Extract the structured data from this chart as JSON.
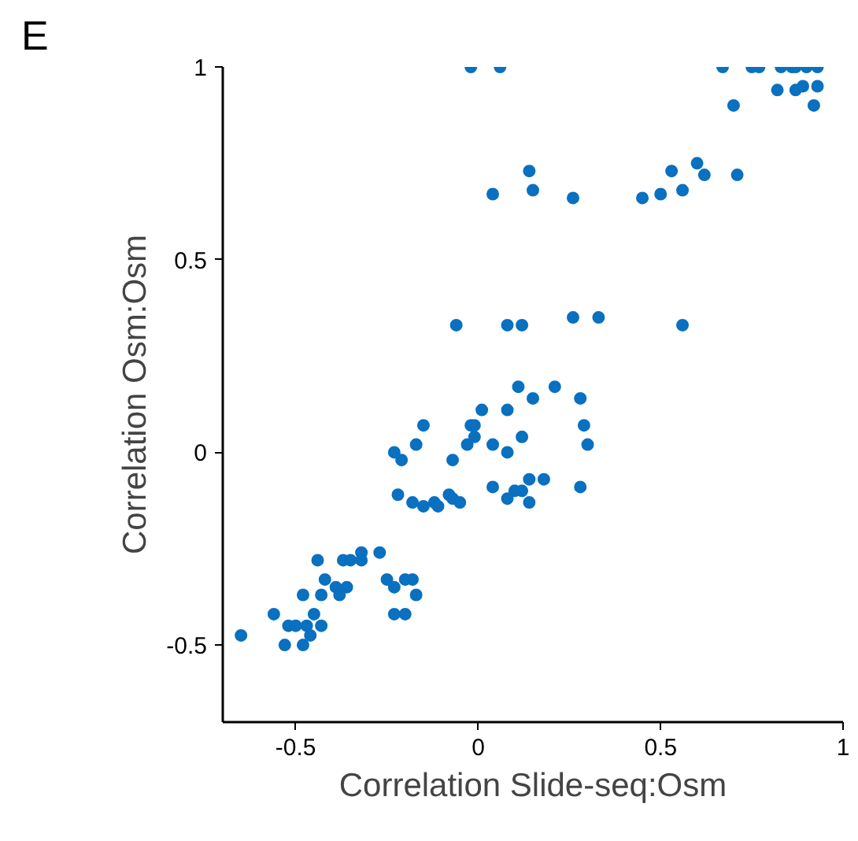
{
  "chart_data": {
    "type": "scatter",
    "xlabel": "Correlation Slide-seq:Osm",
    "ylabel": "Correlation Osm:Osm",
    "annotations": [
      "E"
    ],
    "xlim": [
      -0.7,
      1.0
    ],
    "ylim": [
      -0.7,
      1.0
    ],
    "xticks": [
      -0.5,
      0,
      0.5,
      1
    ],
    "yticks": [
      -0.5,
      0,
      0.5,
      1
    ],
    "grid": false,
    "marker": "circle",
    "series": [
      {
        "color": "#0a70c0",
        "x": [
          -0.02,
          0.06,
          0.67,
          0.75,
          0.77,
          0.83,
          0.86,
          0.87,
          0.9,
          0.93,
          0.82,
          0.87,
          0.89,
          0.93,
          0.7,
          0.92,
          0.04,
          0.14,
          0.15,
          0.26,
          0.45,
          0.5,
          0.53,
          0.56,
          0.6,
          0.62,
          0.71,
          -0.06,
          0.08,
          0.12,
          0.26,
          0.33,
          0.56,
          0.11,
          0.21,
          0.15,
          0.28,
          0.01,
          0.08,
          -0.15,
          -0.02,
          -0.01,
          0.29,
          -0.17,
          -0.03,
          -0.01,
          0.04,
          0.12,
          0.3,
          -0.23,
          0.08,
          -0.21,
          -0.07,
          0.14,
          0.18,
          0.04,
          0.1,
          0.12,
          0.28,
          -0.22,
          -0.08,
          -0.07,
          -0.05,
          0.08,
          0.14,
          -0.18,
          -0.15,
          -0.12,
          -0.11,
          -0.65,
          -0.56,
          -0.53,
          -0.48,
          -0.52,
          -0.5,
          -0.47,
          -0.46,
          -0.43,
          -0.45,
          -0.48,
          -0.43,
          -0.42,
          -0.44,
          -0.39,
          -0.38,
          -0.36,
          -0.37,
          -0.35,
          -0.32,
          -0.32,
          -0.27,
          -0.25,
          -0.23,
          -0.23,
          -0.2,
          -0.2,
          -0.18,
          -0.17
        ],
        "values": [
          1.0,
          1.0,
          1.0,
          1.0,
          1.0,
          1.0,
          1.0,
          1.0,
          1.0,
          1.0,
          0.94,
          0.94,
          0.95,
          0.95,
          0.9,
          0.9,
          0.67,
          0.73,
          0.68,
          0.66,
          0.66,
          0.67,
          0.73,
          0.68,
          0.75,
          0.72,
          0.72,
          0.33,
          0.33,
          0.33,
          0.35,
          0.35,
          0.33,
          0.17,
          0.17,
          0.14,
          0.14,
          0.11,
          0.11,
          0.07,
          0.07,
          0.07,
          0.07,
          0.02,
          0.02,
          0.04,
          0.02,
          0.04,
          0.02,
          0.0,
          0.0,
          -0.02,
          -0.02,
          -0.07,
          -0.07,
          -0.09,
          -0.1,
          -0.1,
          -0.09,
          -0.11,
          -0.11,
          -0.12,
          -0.13,
          -0.12,
          -0.13,
          -0.13,
          -0.14,
          -0.13,
          -0.14,
          -0.475,
          -0.42,
          -0.5,
          -0.5,
          -0.45,
          -0.45,
          -0.45,
          -0.475,
          -0.45,
          -0.42,
          -0.37,
          -0.37,
          -0.33,
          -0.28,
          -0.35,
          -0.37,
          -0.35,
          -0.28,
          -0.28,
          -0.28,
          -0.26,
          -0.26,
          -0.33,
          -0.35,
          -0.42,
          -0.42,
          -0.33,
          -0.33,
          -0.37
        ]
      }
    ]
  }
}
